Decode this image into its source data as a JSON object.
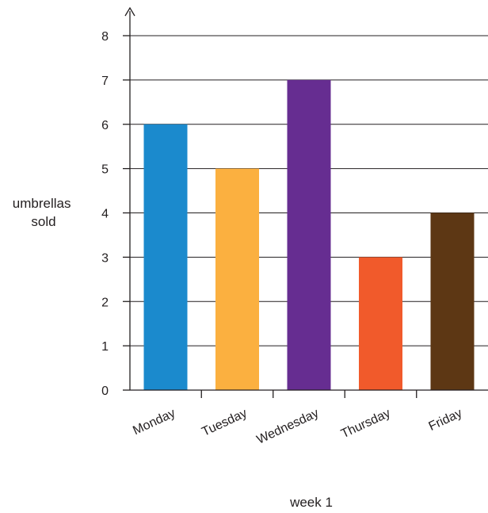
{
  "chart_data": {
    "type": "bar",
    "title": "",
    "xlabel": "week 1",
    "ylabel_lines": [
      "umbrellas",
      "sold"
    ],
    "categories": [
      "Monday",
      "Tuesday",
      "Wednesday",
      "Thursday",
      "Friday"
    ],
    "values": [
      6,
      5,
      7,
      3,
      4
    ],
    "colors": [
      "#1b8acd",
      "#fbb040",
      "#662d91",
      "#f15a2b",
      "#5d3714"
    ],
    "ylim": [
      0,
      8
    ],
    "yticks": [
      0,
      1,
      2,
      3,
      4,
      5,
      6,
      7,
      8
    ],
    "grid": true,
    "legend": "none"
  }
}
